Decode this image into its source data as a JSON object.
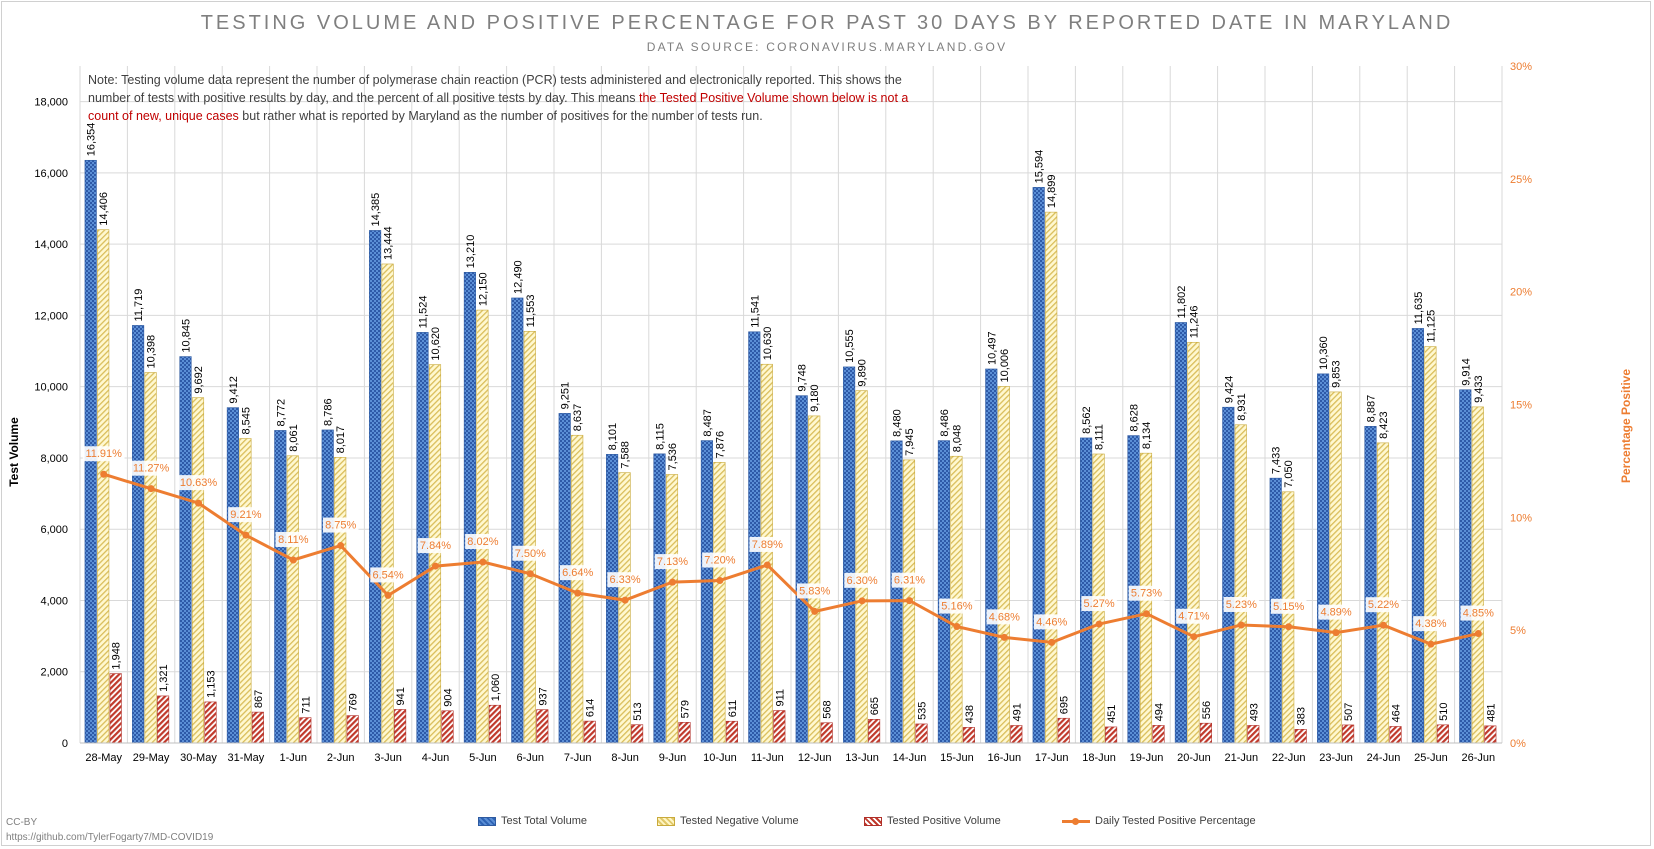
{
  "header": {
    "title": "TESTING VOLUME AND POSITIVE PERCENTAGE FOR PAST 30 DAYS BY REPORTED DATE IN MARYLAND",
    "subtitle": "DATA SOURCE: CORONAVIRUS.MARYLAND.GOV"
  },
  "note": {
    "part1": "Note: Testing volume data represent the number of polymerase chain reaction (PCR) tests administered and electronically reported. This shows the number of tests with positive results by day, and the percent of all positive tests by day. This means ",
    "highlight": "the Tested Positive Volume shown below is not a count of new, unique cases",
    "part2": " but rather what is reported by Maryland as the number of positives for the number of tests run."
  },
  "footer": {
    "license": "CC-BY",
    "url": "https://github.com/TylerFogarty7/MD-COVID19"
  },
  "colors": {
    "total": "#4472c4",
    "negative": "#ffe699",
    "positive": "#c0392b",
    "line": "#ed7d31"
  },
  "chart_data": {
    "type": "bar",
    "title": "TESTING VOLUME AND POSITIVE PERCENTAGE FOR PAST 30 DAYS BY REPORTED DATE IN MARYLAND",
    "ylabel": "Test Volume",
    "y2label": "Percentage Positive",
    "ylim": [
      0,
      19000
    ],
    "y_ticks": [
      "0",
      "2,000",
      "4,000",
      "6,000",
      "8,000",
      "10,000",
      "12,000",
      "14,000",
      "16,000",
      "18,000"
    ],
    "y2lim": [
      0,
      30
    ],
    "y2_ticks": [
      "0%",
      "5%",
      "10%",
      "15%",
      "20%",
      "25%",
      "30%"
    ],
    "legend_position": "bottom",
    "grid": true,
    "categories": [
      "28-May",
      "29-May",
      "30-May",
      "31-May",
      "1-Jun",
      "2-Jun",
      "3-Jun",
      "4-Jun",
      "5-Jun",
      "6-Jun",
      "7-Jun",
      "8-Jun",
      "9-Jun",
      "10-Jun",
      "11-Jun",
      "12-Jun",
      "13-Jun",
      "14-Jun",
      "15-Jun",
      "16-Jun",
      "17-Jun",
      "18-Jun",
      "19-Jun",
      "20-Jun",
      "21-Jun",
      "22-Jun",
      "23-Jun",
      "24-Jun",
      "25-Jun",
      "26-Jun"
    ],
    "series": [
      {
        "name": "Test Total Volume",
        "type": "bar",
        "values": [
          16354,
          11719,
          10845,
          9412,
          8772,
          8786,
          14385,
          11524,
          13210,
          12490,
          9251,
          8101,
          8115,
          8487,
          11541,
          9748,
          10555,
          8480,
          8486,
          10497,
          15594,
          8562,
          8628,
          11802,
          9424,
          7433,
          10360,
          8887,
          11635,
          9914
        ],
        "labels": [
          "16,354",
          "11,719",
          "10,845",
          "9,412",
          "8,772",
          "8,786",
          "14,385",
          "11,524",
          "13,210",
          "12,490",
          "9,251",
          "8,101",
          "8,115",
          "8,487",
          "11,541",
          "9,748",
          "10,555",
          "8,480",
          "8,486",
          "10,497",
          "15,594",
          "8,562",
          "8,628",
          "11,802",
          "9,424",
          "7,433",
          "10,360",
          "8,887",
          "11,635",
          "9,914"
        ]
      },
      {
        "name": "Tested Negative Volume",
        "type": "bar",
        "values": [
          14406,
          10398,
          9692,
          8545,
          8061,
          8017,
          13444,
          10620,
          12150,
          11553,
          8637,
          7588,
          7536,
          7876,
          10630,
          9180,
          9890,
          7945,
          8048,
          10006,
          14899,
          8111,
          8134,
          11246,
          8931,
          7050,
          9853,
          8423,
          11125,
          9433
        ],
        "labels": [
          "14,406",
          "10,398",
          "9,692",
          "8,545",
          "8,061",
          "8,017",
          "13,444",
          "10,620",
          "12,150",
          "11,553",
          "8,637",
          "7,588",
          "7,536",
          "7,876",
          "10,630",
          "9,180",
          "9,890",
          "7,945",
          "8,048",
          "10,006",
          "14,899",
          "8,111",
          "8,134",
          "11,246",
          "8,931",
          "7,050",
          "9,853",
          "8,423",
          "11,125",
          "9,433"
        ]
      },
      {
        "name": "Tested Positive Volume",
        "type": "bar",
        "values": [
          1948,
          1321,
          1153,
          867,
          711,
          769,
          941,
          904,
          1060,
          937,
          614,
          513,
          579,
          611,
          911,
          568,
          665,
          535,
          438,
          491,
          695,
          451,
          494,
          556,
          493,
          383,
          507,
          464,
          510,
          481
        ],
        "labels": [
          "1,948",
          "1,321",
          "1,153",
          "867",
          "711",
          "769",
          "941",
          "904",
          "1,060",
          "937",
          "614",
          "513",
          "579",
          "611",
          "911",
          "568",
          "665",
          "535",
          "438",
          "491",
          "695",
          "451",
          "494",
          "556",
          "493",
          "383",
          "507",
          "464",
          "510",
          "481"
        ]
      },
      {
        "name": "Daily Tested Positive Percentage",
        "type": "line",
        "axis": "right",
        "values": [
          11.91,
          11.27,
          10.63,
          9.21,
          8.11,
          8.75,
          6.54,
          7.84,
          8.02,
          7.5,
          6.64,
          6.33,
          7.13,
          7.2,
          7.89,
          5.83,
          6.3,
          6.31,
          5.16,
          4.68,
          4.46,
          5.27,
          5.73,
          4.71,
          5.23,
          5.15,
          4.89,
          5.22,
          4.38,
          4.85
        ],
        "labels": [
          "11.91%",
          "11.27%",
          "10.63%",
          "9.21%",
          "8.11%",
          "8.75%",
          "6.54%",
          "7.84%",
          "8.02%",
          "7.50%",
          "6.64%",
          "6.33%",
          "7.13%",
          "7.20%",
          "7.89%",
          "5.83%",
          "6.30%",
          "6.31%",
          "5.16%",
          "4.68%",
          "4.46%",
          "5.27%",
          "5.73%",
          "4.71%",
          "5.23%",
          "5.15%",
          "4.89%",
          "5.22%",
          "4.38%",
          "4.85%"
        ]
      }
    ]
  }
}
